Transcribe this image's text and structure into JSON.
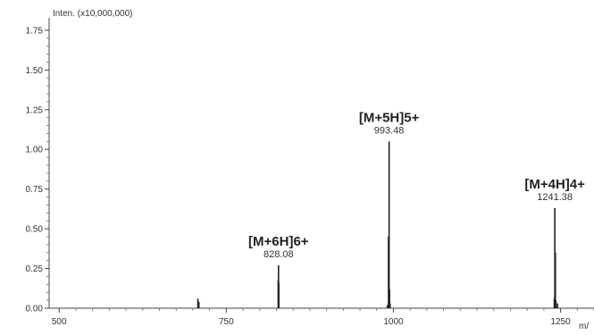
{
  "chart_data": {
    "type": "bar",
    "ylabel": "Inten. (x10,000,000)",
    "xlabel": "m/",
    "xlim": [
      485,
      1300
    ],
    "ylim": [
      0,
      1.8
    ],
    "xticks": [
      500,
      750,
      1000,
      1250
    ],
    "xtick_labels": [
      "500",
      "750",
      "1000",
      "1250"
    ],
    "yticks": [
      0.0,
      0.25,
      0.5,
      0.75,
      1.0,
      1.25,
      1.5,
      1.75
    ],
    "ytick_labels": [
      "0.00",
      "0.25",
      "0.50",
      "0.75",
      "1.00",
      "1.25",
      "1.50",
      "1.75"
    ],
    "peaks": [
      {
        "x": 707.5,
        "y": 0.06
      },
      {
        "x": 709,
        "y": 0.04
      },
      {
        "x": 827.6,
        "y": 0.18
      },
      {
        "x": 828.1,
        "y": 0.27
      },
      {
        "x": 828.6,
        "y": 0.16
      },
      {
        "x": 991.0,
        "y": 0.02
      },
      {
        "x": 992.6,
        "y": 0.45
      },
      {
        "x": 993.5,
        "y": 1.05
      },
      {
        "x": 994.2,
        "y": 0.12
      },
      {
        "x": 995.0,
        "y": 0.03
      },
      {
        "x": 1240.6,
        "y": 0.06
      },
      {
        "x": 1241.4,
        "y": 0.63
      },
      {
        "x": 1242.2,
        "y": 0.35
      },
      {
        "x": 1243.0,
        "y": 0.05
      },
      {
        "x": 1245.5,
        "y": 0.03
      }
    ],
    "annotations": [
      {
        "ion": "[M+6H]6+",
        "mz": "828.08",
        "x": 828.1,
        "y": 0.27
      },
      {
        "ion": "[M+5H]5+",
        "mz": "993.48",
        "x": 993.5,
        "y": 1.05
      },
      {
        "ion": "[M+4H]4+",
        "mz": "1241.38",
        "x": 1241.4,
        "y": 0.63
      }
    ],
    "grid": false,
    "color": "#222222"
  }
}
